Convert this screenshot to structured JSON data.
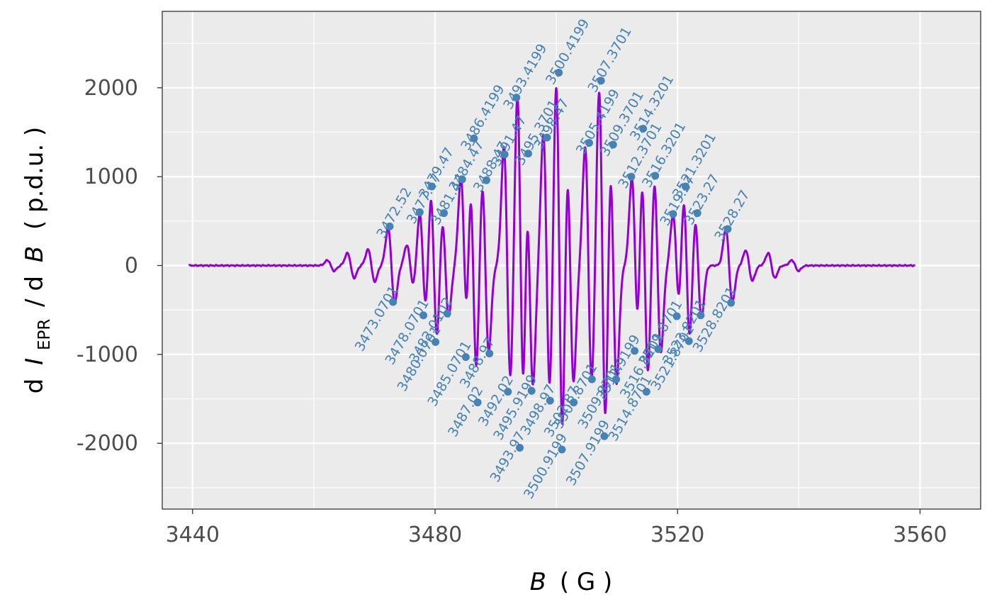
{
  "chart_data": {
    "type": "line",
    "title": "",
    "xlabel": {
      "var": "B",
      "unit": "( G )"
    },
    "ylabel": {
      "prefix": "d",
      "var": "I",
      "sub": "EPR",
      "mid": "/ d",
      "var2": "B",
      "unit": "( p.d.u. )"
    },
    "xlim": [
      3435,
      3570
    ],
    "ylim": [
      -2740,
      2860
    ],
    "x_ticks": [
      3440,
      3480,
      3520,
      3560
    ],
    "x_tick_labels": [
      "3440",
      "3480",
      "3520",
      "3560"
    ],
    "x_minor_ticks": [
      3460,
      3500,
      3540
    ],
    "y_ticks": [
      -2000,
      -1000,
      0,
      1000,
      2000
    ],
    "y_tick_labels": [
      "-2000",
      "-1000",
      "0",
      "1000",
      "2000"
    ],
    "y_minor_ticks": [
      -2500,
      -1500,
      -500,
      500,
      1500,
      2500
    ],
    "grid": true,
    "background": "#ebebeb",
    "line_color": "#9400d3",
    "point_color": "#4682b4",
    "series": [
      {
        "x_range": [
          3439.4,
          3559.2
        ],
        "baseline": 0,
        "resonances": [
          {
            "center": 3462.8,
            "amp": 60
          },
          {
            "center": 3466.1,
            "amp": 140
          },
          {
            "center": 3469.5,
            "amp": 180
          },
          {
            "center": 3472.8,
            "amp": 420
          },
          {
            "center": 3475.9,
            "amp": 230
          },
          {
            "center": 3478.0,
            "amp": 590
          },
          {
            "center": 3479.8,
            "amp": 870
          },
          {
            "center": 3481.7,
            "amp": 570
          },
          {
            "center": 3484.8,
            "amp": 990
          },
          {
            "center": 3486.3,
            "amp": 1230
          },
          {
            "center": 3488.3,
            "amp": 970
          },
          {
            "center": 3491.9,
            "amp": 1330
          },
          {
            "center": 3494.1,
            "amp": 1960
          },
          {
            "center": 3495.6,
            "amp": 1330
          },
          {
            "center": 3498.4,
            "amp": 1480
          },
          {
            "center": 3500.5,
            "amp": 2110
          },
          {
            "center": 3502.3,
            "amp": 1300
          },
          {
            "center": 3505.3,
            "amp": 1330
          },
          {
            "center": 3507.6,
            "amp": 1990
          },
          {
            "center": 3509.4,
            "amp": 1330
          },
          {
            "center": 3513.0,
            "amp": 980
          },
          {
            "center": 3514.6,
            "amp": 1250
          },
          {
            "center": 3516.7,
            "amp": 980
          },
          {
            "center": 3519.8,
            "amp": 570
          },
          {
            "center": 3521.5,
            "amp": 870
          },
          {
            "center": 3523.4,
            "amp": 590
          },
          {
            "center": 3528.5,
            "amp": 410
          },
          {
            "center": 3531.8,
            "amp": 170
          },
          {
            "center": 3535.5,
            "amp": 140
          },
          {
            "center": 3539.4,
            "amp": 60
          }
        ]
      }
    ],
    "peaks_max": [
      {
        "x": 3472.52,
        "y": 440,
        "label": "3472.52"
      },
      {
        "x": 3477.47,
        "y": 600,
        "label": "3477.47"
      },
      {
        "x": 3479.47,
        "y": 890,
        "label": "3479.47"
      },
      {
        "x": 3481.47,
        "y": 590,
        "label": "3481.47"
      },
      {
        "x": 3484.47,
        "y": 970,
        "label": "3484.47"
      },
      {
        "x": 3486.4199,
        "y": 1430,
        "label": "3486.4199"
      },
      {
        "x": 3488.47,
        "y": 960,
        "label": "3488.47"
      },
      {
        "x": 3491.47,
        "y": 1250,
        "label": "3491.47"
      },
      {
        "x": 3493.4199,
        "y": 1890,
        "label": "3493.4199"
      },
      {
        "x": 3495.3701,
        "y": 1260,
        "label": "3495.3701"
      },
      {
        "x": 3498.47,
        "y": 1440,
        "label": "3498.47"
      },
      {
        "x": 3500.4199,
        "y": 2170,
        "label": "3500.4199"
      },
      {
        "x": 3505.4199,
        "y": 1380,
        "label": "3505.4199"
      },
      {
        "x": 3507.3701,
        "y": 2080,
        "label": "3507.3701"
      },
      {
        "x": 3509.3701,
        "y": 1360,
        "label": "3509.3701"
      },
      {
        "x": 3512.3701,
        "y": 1000,
        "label": "3512.3701"
      },
      {
        "x": 3514.3201,
        "y": 1540,
        "label": "3514.3201"
      },
      {
        "x": 3516.3201,
        "y": 1010,
        "label": "3516.3201"
      },
      {
        "x": 3519.27,
        "y": 580,
        "label": "3519.27"
      },
      {
        "x": 3521.3201,
        "y": 890,
        "label": "3521.3201"
      },
      {
        "x": 3523.27,
        "y": 590,
        "label": "3523.27"
      },
      {
        "x": 3528.27,
        "y": 410,
        "label": "3528.27"
      }
    ],
    "peaks_min": [
      {
        "x": 3473.0701,
        "y": -410,
        "label": "3473.0701"
      },
      {
        "x": 3478.0701,
        "y": -560,
        "label": "3478.0701"
      },
      {
        "x": 3480.0701,
        "y": -860,
        "label": "3480.0701"
      },
      {
        "x": 3482.0102,
        "y": -540,
        "label": "3482.0102"
      },
      {
        "x": 3485.0701,
        "y": -1030,
        "label": "3485.0701"
      },
      {
        "x": 3487.02,
        "y": -1540,
        "label": "3487.02"
      },
      {
        "x": 3488.97,
        "y": -990,
        "label": "3488.97"
      },
      {
        "x": 3492.02,
        "y": -1420,
        "label": "3492.02"
      },
      {
        "x": 3493.97,
        "y": -2050,
        "label": "3493.97"
      },
      {
        "x": 3495.9199,
        "y": -1410,
        "label": "3495.9199"
      },
      {
        "x": 3498.97,
        "y": -1520,
        "label": "3498.97"
      },
      {
        "x": 3500.9199,
        "y": -2070,
        "label": "3500.9199"
      },
      {
        "x": 3502.87,
        "y": -1540,
        "label": "3502.87"
      },
      {
        "x": 3505.8701,
        "y": -1280,
        "label": "3505.8701"
      },
      {
        "x": 3507.9199,
        "y": -1920,
        "label": "3507.9199"
      },
      {
        "x": 3509.8701,
        "y": -1280,
        "label": "3509.8701"
      },
      {
        "x": 3512.9199,
        "y": -960,
        "label": "3512.9199"
      },
      {
        "x": 3514.8701,
        "y": -1420,
        "label": "3514.8701"
      },
      {
        "x": 3516.8201,
        "y": -940,
        "label": "3516.8201"
      },
      {
        "x": 3519.8701,
        "y": -570,
        "label": "3519.8701"
      },
      {
        "x": 3521.8701,
        "y": -850,
        "label": "3521.8701"
      },
      {
        "x": 3523.8201,
        "y": -560,
        "label": "3523.8201"
      },
      {
        "x": 3528.8201,
        "y": -420,
        "label": "3528.8201"
      }
    ]
  }
}
